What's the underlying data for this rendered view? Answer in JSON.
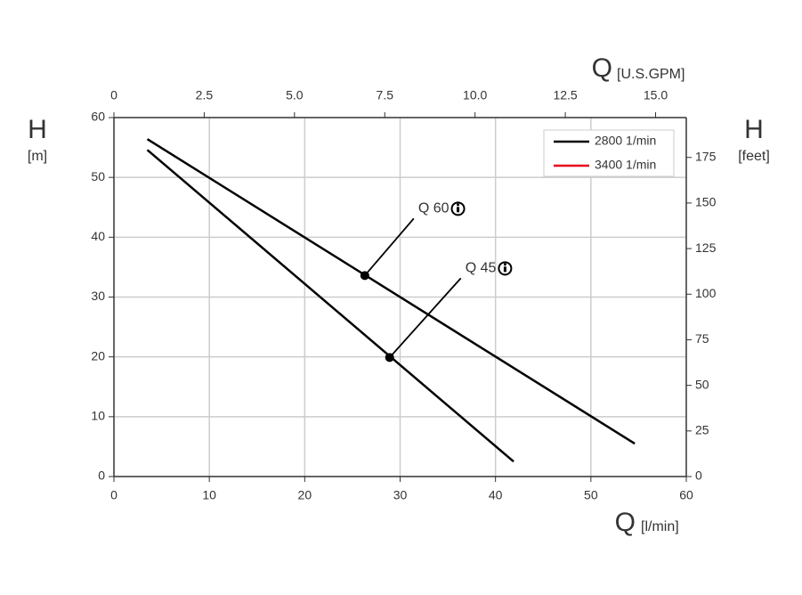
{
  "chart_data": {
    "type": "line",
    "x_label": {
      "symbol": "Q",
      "unit": "[l/min]"
    },
    "x2_label": {
      "symbol": "Q",
      "unit": "[U.S.GPM]"
    },
    "y_label": {
      "symbol": "H",
      "unit": "[m]"
    },
    "y2_label": {
      "symbol": "H",
      "unit": "[feet]"
    },
    "xlim": [
      0,
      60
    ],
    "xticks": [
      0,
      10,
      20,
      30,
      40,
      50,
      60
    ],
    "x2lim": [
      0,
      15.85
    ],
    "x2ticks": [
      0,
      2.5,
      {
        "value": 5,
        "label": "5.0"
      },
      7.5,
      {
        "value": 10,
        "label": "10.0"
      },
      12.5,
      {
        "value": 15,
        "label": "15.0"
      }
    ],
    "ylim": [
      0,
      60
    ],
    "yticks": [
      0,
      10,
      20,
      30,
      40,
      50,
      60
    ],
    "y2lim": [
      0,
      196.85
    ],
    "y2ticks": [
      0,
      25,
      50,
      75,
      100,
      125,
      150,
      175
    ],
    "grid": true,
    "legend": [
      {
        "name": "2800 1/min",
        "color": "#000000"
      },
      {
        "name": "3400 1/min",
        "color": "#e8001c"
      }
    ],
    "series": [
      {
        "name": "Q 60",
        "color": "#000000",
        "x": [
          3.5,
          54.6
        ],
        "values": [
          56.4,
          5.5
        ],
        "marker_x": 26.3,
        "marker_y": 33.6
      },
      {
        "name": "Q 45",
        "color": "#000000",
        "x": [
          3.5,
          41.9
        ],
        "values": [
          54.6,
          2.5
        ],
        "marker_x": 28.9,
        "marker_y": 19.9
      }
    ]
  }
}
